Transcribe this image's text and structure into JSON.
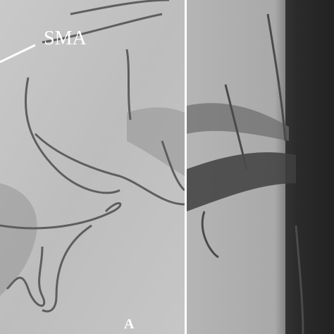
{
  "left_panel": {
    "annotation": "SMA",
    "label": "A"
  }
}
